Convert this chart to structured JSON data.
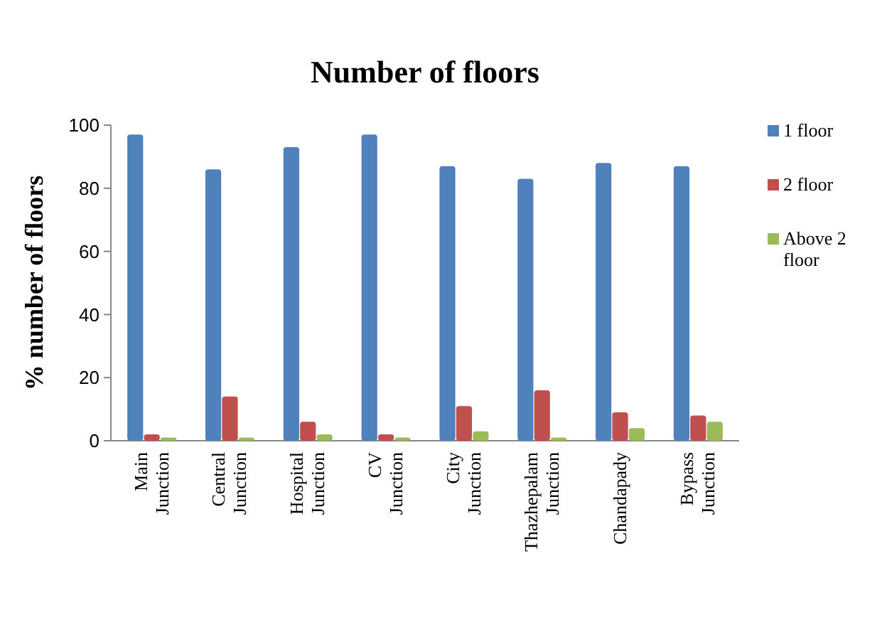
{
  "chart_data": {
    "type": "bar",
    "title": "Number of floors",
    "ylabel": "% number of floors",
    "categories": [
      "Main Junction",
      "Central Junction",
      "Hospital Junction",
      "CV Junction",
      "City Junction",
      "Thazhepalam Junction",
      "Chandapady",
      "Bypass Junction"
    ],
    "series": [
      {
        "name": "1 floor",
        "color": "#4f81bd",
        "values": [
          97,
          86,
          93,
          97,
          87,
          83,
          88,
          87
        ]
      },
      {
        "name": "2 floor",
        "color": "#c0504d",
        "values": [
          2,
          14,
          6,
          2,
          11,
          16,
          9,
          8
        ]
      },
      {
        "name": "Above 2 floor",
        "color": "#9bbb59",
        "values": [
          1,
          1,
          2,
          1,
          3,
          1,
          4,
          6
        ]
      }
    ],
    "ylim": [
      0,
      100
    ],
    "yticks": [
      0,
      20,
      40,
      60,
      80,
      100
    ],
    "legend": "right"
  }
}
